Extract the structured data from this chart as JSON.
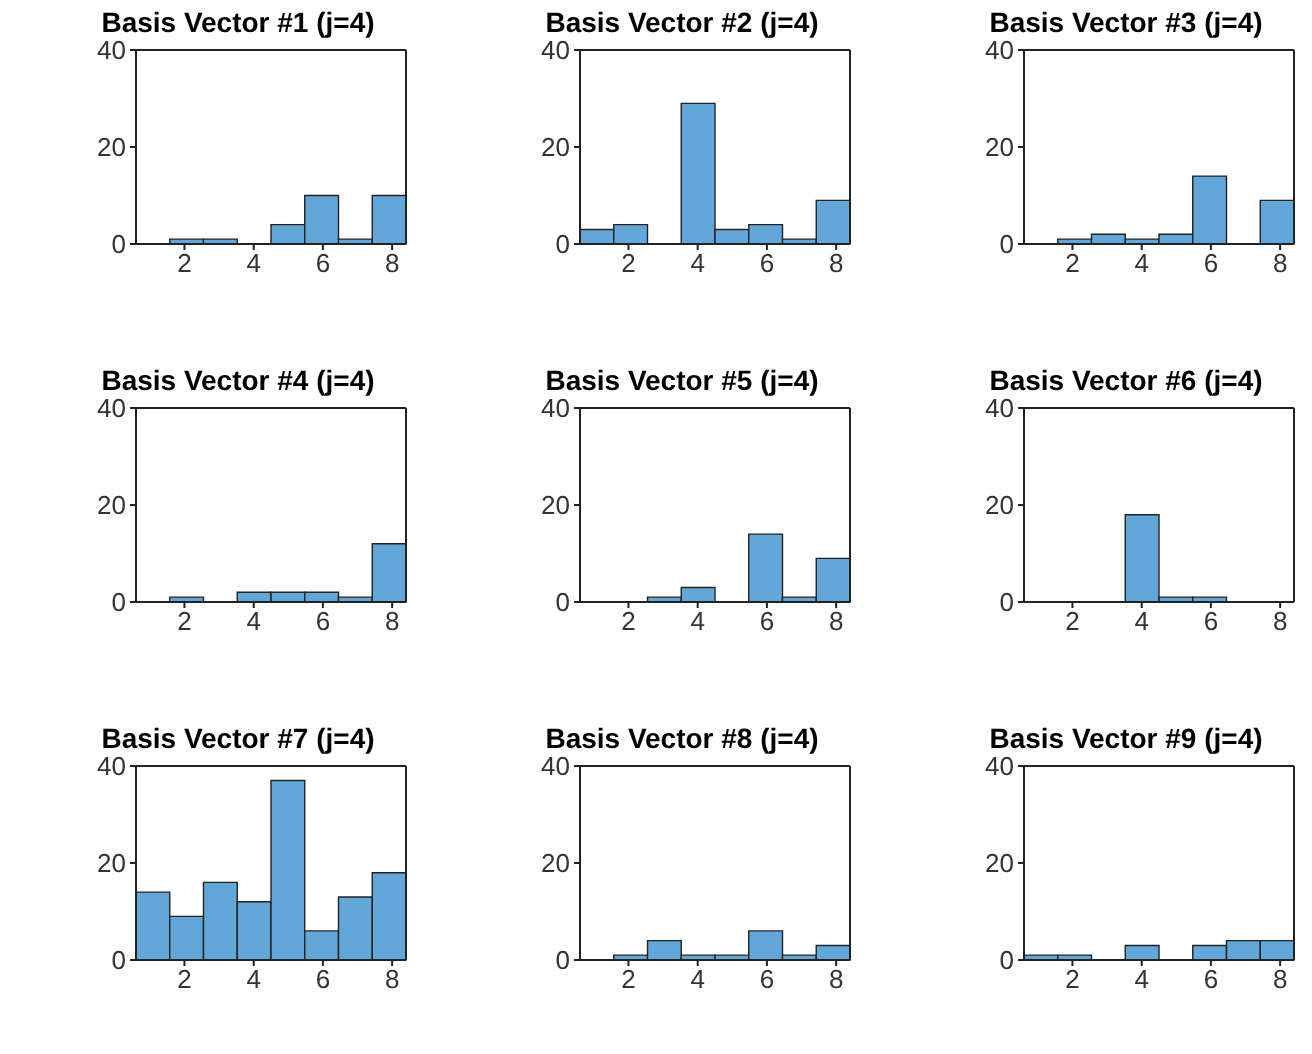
{
  "chart_data": [
    {
      "type": "histogram",
      "title": "Basis Vector #1 (j=4)",
      "bins": [
        0.6,
        1.575,
        2.55,
        3.525,
        4.5,
        5.475,
        6.45,
        7.425,
        8.4
      ],
      "values": [
        0,
        1,
        1,
        0,
        4,
        10,
        1,
        10
      ],
      "color": "#63a7d9",
      "xlim": [
        0.6,
        8.4
      ],
      "xticks": [
        2,
        4,
        6,
        8
      ],
      "ylim": [
        0,
        40
      ],
      "yticks": [
        0,
        20,
        40
      ],
      "grid": false
    },
    {
      "type": "histogram",
      "title": "Basis Vector #2 (j=4)",
      "bins": [
        0.6,
        1.575,
        2.55,
        3.525,
        4.5,
        5.475,
        6.45,
        7.425,
        8.4
      ],
      "values": [
        3,
        4,
        0,
        29,
        3,
        4,
        1,
        9
      ],
      "color": "#63a7d9",
      "xlim": [
        0.6,
        8.4
      ],
      "xticks": [
        2,
        4,
        6,
        8
      ],
      "ylim": [
        0,
        40
      ],
      "yticks": [
        0,
        20,
        40
      ],
      "grid": false
    },
    {
      "type": "histogram",
      "title": "Basis Vector #3 (j=4)",
      "bins": [
        0.6,
        1.575,
        2.55,
        3.525,
        4.5,
        5.475,
        6.45,
        7.425,
        8.4
      ],
      "values": [
        0,
        1,
        2,
        1,
        2,
        14,
        0,
        9
      ],
      "color": "#63a7d9",
      "xlim": [
        0.6,
        8.4
      ],
      "xticks": [
        2,
        4,
        6,
        8
      ],
      "ylim": [
        0,
        40
      ],
      "yticks": [
        0,
        20,
        40
      ],
      "grid": false
    },
    {
      "type": "histogram",
      "title": "Basis Vector #4 (j=4)",
      "bins": [
        0.6,
        1.575,
        2.55,
        3.525,
        4.5,
        5.475,
        6.45,
        7.425,
        8.4
      ],
      "values": [
        0,
        1,
        0,
        2,
        2,
        2,
        1,
        12
      ],
      "color": "#63a7d9",
      "xlim": [
        0.6,
        8.4
      ],
      "xticks": [
        2,
        4,
        6,
        8
      ],
      "ylim": [
        0,
        40
      ],
      "yticks": [
        0,
        20,
        40
      ],
      "grid": false
    },
    {
      "type": "histogram",
      "title": "Basis Vector #5 (j=4)",
      "bins": [
        0.6,
        1.575,
        2.55,
        3.525,
        4.5,
        5.475,
        6.45,
        7.425,
        8.4
      ],
      "values": [
        0,
        0,
        1,
        3,
        0,
        14,
        1,
        9
      ],
      "color": "#63a7d9",
      "xlim": [
        0.6,
        8.4
      ],
      "xticks": [
        2,
        4,
        6,
        8
      ],
      "ylim": [
        0,
        40
      ],
      "yticks": [
        0,
        20,
        40
      ],
      "grid": false
    },
    {
      "type": "histogram",
      "title": "Basis Vector #6 (j=4)",
      "bins": [
        0.6,
        1.575,
        2.55,
        3.525,
        4.5,
        5.475,
        6.45,
        7.425,
        8.4
      ],
      "values": [
        0,
        0,
        0,
        18,
        1,
        1,
        0,
        0
      ],
      "color": "#63a7d9",
      "xlim": [
        0.6,
        8.4
      ],
      "xticks": [
        2,
        4,
        6,
        8
      ],
      "ylim": [
        0,
        40
      ],
      "yticks": [
        0,
        20,
        40
      ],
      "grid": false
    },
    {
      "type": "histogram",
      "title": "Basis Vector #7 (j=4)",
      "bins": [
        0.6,
        1.575,
        2.55,
        3.525,
        4.5,
        5.475,
        6.45,
        7.425,
        8.4
      ],
      "values": [
        14,
        9,
        16,
        12,
        37,
        6,
        13,
        18
      ],
      "color": "#63a7d9",
      "xlim": [
        0.6,
        8.4
      ],
      "xticks": [
        2,
        4,
        6,
        8
      ],
      "ylim": [
        0,
        40
      ],
      "yticks": [
        0,
        20,
        40
      ],
      "grid": false
    },
    {
      "type": "histogram",
      "title": "Basis Vector #8 (j=4)",
      "bins": [
        0.6,
        1.575,
        2.55,
        3.525,
        4.5,
        5.475,
        6.45,
        7.425,
        8.4
      ],
      "values": [
        0,
        1,
        4,
        1,
        1,
        6,
        1,
        3
      ],
      "color": "#63a7d9",
      "xlim": [
        0.6,
        8.4
      ],
      "xticks": [
        2,
        4,
        6,
        8
      ],
      "ylim": [
        0,
        40
      ],
      "yticks": [
        0,
        20,
        40
      ],
      "grid": false
    },
    {
      "type": "histogram",
      "title": "Basis Vector #9 (j=4)",
      "bins": [
        0.6,
        1.575,
        2.55,
        3.525,
        4.5,
        5.475,
        6.45,
        7.425,
        8.4
      ],
      "values": [
        1,
        1,
        0,
        3,
        0,
        3,
        4,
        4
      ],
      "color": "#63a7d9",
      "xlim": [
        0.6,
        8.4
      ],
      "xticks": [
        2,
        4,
        6,
        8
      ],
      "ylim": [
        0,
        40
      ],
      "yticks": [
        0,
        20,
        40
      ],
      "grid": false
    }
  ]
}
